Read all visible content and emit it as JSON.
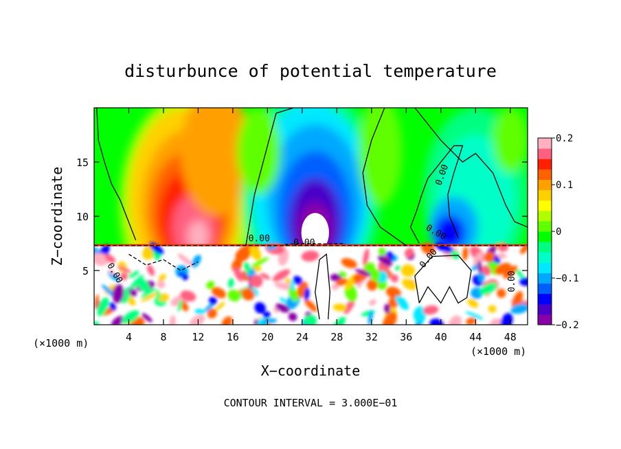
{
  "chart_data": {
    "type": "heatmap",
    "title": "disturbunce of potential temperature",
    "xlabel": "X−coordinate",
    "ylabel": "Z−coordinate",
    "x_unit_left": "(×1000 m)",
    "x_unit_right": "(×1000 m)",
    "xlim": [
      0,
      50
    ],
    "ylim": [
      0,
      20
    ],
    "x_ticks": [
      4,
      8,
      12,
      16,
      20,
      24,
      28,
      32,
      36,
      40,
      44,
      48
    ],
    "x_tick_labels": [
      "4",
      "8",
      "12",
      "16",
      "20",
      "24",
      "28",
      "32",
      "36",
      "40",
      "44",
      "48"
    ],
    "y_ticks": [
      5,
      10,
      15
    ],
    "y_tick_labels": [
      "5",
      "10",
      "15"
    ],
    "colorbar": {
      "range": [
        -0.2,
        0.2
      ],
      "tick_values": [
        0.2,
        0.1,
        0,
        -0.1,
        -0.2
      ],
      "tick_labels": [
        "0.2",
        "0.1",
        "0",
        "−0.1",
        "−0.2"
      ],
      "colors": [
        "#8a00a8",
        "#4a00c8",
        "#0000ff",
        "#005eff",
        "#00a8ff",
        "#00e8ff",
        "#00ffc8",
        "#00ff80",
        "#00ff00",
        "#60ff00",
        "#b0ff00",
        "#ffff00",
        "#ffd000",
        "#ffa000",
        "#ff6000",
        "#ff2000",
        "#ff6080",
        "#ffb0c0"
      ]
    },
    "contour_labels": [
      "0.00",
      "0.00",
      "0.00",
      "0.00",
      "0.00",
      "0.00",
      "0.00"
    ],
    "grid": false,
    "footnote": "CONTOUR INTERVAL = 3.000E−01"
  }
}
